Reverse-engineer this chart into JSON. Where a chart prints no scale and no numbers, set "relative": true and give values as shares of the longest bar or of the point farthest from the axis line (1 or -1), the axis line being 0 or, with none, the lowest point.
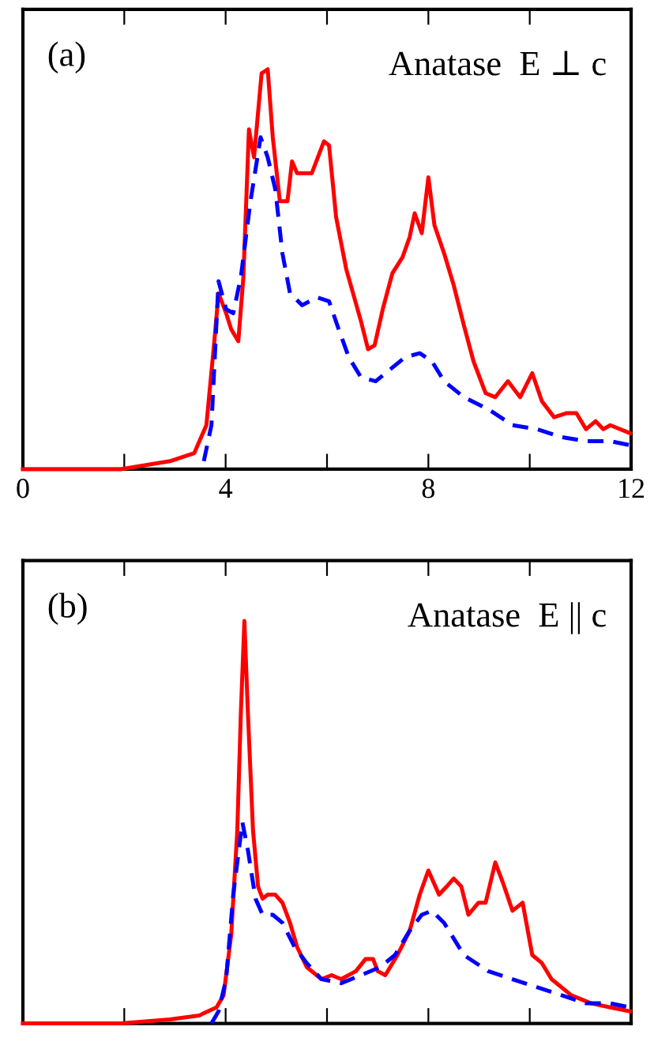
{
  "chart_data": [
    {
      "type": "line",
      "relative": true,
      "xlim": [
        0,
        12
      ],
      "xticks": [
        0,
        {
          "value": 2,
          "label": null
        },
        4,
        {
          "value": 6,
          "label": null
        },
        8,
        {
          "value": 10,
          "label": null
        },
        12
      ],
      "tick_labels": "x",
      "annotations": [
        "(a)",
        "Anatase  E ⊥ c"
      ],
      "series": [
        {
          "color": "#ff0000",
          "line_style": "solid",
          "x": [
            0,
            1.93,
            2.9,
            3.38,
            3.62,
            3.77,
            3.86,
            4.01,
            4.11,
            4.25,
            4.35,
            4.46,
            4.56,
            4.71,
            4.83,
            4.93,
            5.07,
            5.22,
            5.31,
            5.41,
            5.7,
            5.94,
            6.04,
            6.18,
            6.38,
            6.67,
            6.81,
            6.94,
            7.1,
            7.29,
            7.49,
            7.63,
            7.73,
            7.87,
            8.0,
            8.12,
            8.31,
            8.5,
            8.7,
            8.89,
            9.13,
            9.32,
            9.57,
            9.81,
            10.05,
            10.24,
            10.48,
            10.72,
            10.92,
            11.11,
            11.3,
            11.45,
            11.59,
            11.98
          ],
          "values": [
            0,
            0,
            0.02,
            0.04,
            0.11,
            0.31,
            0.44,
            0.39,
            0.35,
            0.32,
            0.48,
            0.85,
            0.78,
            0.99,
            1.0,
            0.83,
            0.67,
            0.67,
            0.77,
            0.74,
            0.74,
            0.82,
            0.81,
            0.63,
            0.5,
            0.37,
            0.3,
            0.31,
            0.4,
            0.49,
            0.53,
            0.58,
            0.64,
            0.59,
            0.73,
            0.61,
            0.54,
            0.46,
            0.36,
            0.27,
            0.19,
            0.18,
            0.22,
            0.18,
            0.24,
            0.17,
            0.13,
            0.14,
            0.14,
            0.1,
            0.12,
            0.1,
            0.11,
            0.09
          ]
        },
        {
          "color": "#0000ff",
          "line_style": "dashed",
          "x": [
            3.57,
            3.72,
            3.86,
            4.01,
            4.15,
            4.3,
            4.49,
            4.69,
            4.83,
            4.98,
            5.12,
            5.27,
            5.51,
            5.8,
            6.04,
            6.23,
            6.43,
            6.67,
            6.96,
            7.25,
            7.54,
            7.83,
            8.07,
            8.31,
            8.7,
            9.18,
            9.66,
            10.14,
            10.63,
            11.11,
            11.59,
            11.98
          ],
          "values": [
            0.02,
            0.11,
            0.47,
            0.4,
            0.39,
            0.48,
            0.67,
            0.83,
            0.78,
            0.7,
            0.54,
            0.44,
            0.41,
            0.43,
            0.42,
            0.35,
            0.28,
            0.23,
            0.22,
            0.25,
            0.28,
            0.29,
            0.27,
            0.22,
            0.18,
            0.15,
            0.11,
            0.1,
            0.08,
            0.07,
            0.07,
            0.06
          ]
        }
      ]
    },
    {
      "type": "line",
      "relative": true,
      "xlim": [
        0,
        12
      ],
      "xticks": [
        0,
        {
          "value": 2,
          "label": null
        },
        4,
        {
          "value": 6,
          "label": null
        },
        8,
        {
          "value": 10,
          "label": null
        },
        12
      ],
      "tick_labels": false,
      "annotations": [
        "(b)",
        "Anatase  E || c"
      ],
      "series": [
        {
          "color": "#ff0000",
          "line_style": "solid",
          "x": [
            0,
            1.93,
            2.9,
            3.48,
            3.82,
            3.96,
            4.11,
            4.23,
            4.3,
            4.37,
            4.44,
            4.54,
            4.64,
            4.73,
            4.83,
            4.98,
            5.12,
            5.27,
            5.41,
            5.6,
            5.89,
            6.09,
            6.28,
            6.57,
            6.76,
            6.91,
            7.0,
            7.15,
            7.39,
            7.63,
            7.83,
            8.0,
            8.21,
            8.36,
            8.5,
            8.65,
            8.79,
            8.99,
            9.13,
            9.32,
            9.47,
            9.66,
            9.86,
            10.05,
            10.24,
            10.43,
            10.82,
            11.21,
            11.59,
            11.98
          ],
          "values": [
            0,
            0,
            0.01,
            0.02,
            0.04,
            0.07,
            0.22,
            0.48,
            0.77,
            1.0,
            0.77,
            0.48,
            0.34,
            0.31,
            0.32,
            0.32,
            0.3,
            0.25,
            0.19,
            0.14,
            0.11,
            0.12,
            0.11,
            0.13,
            0.16,
            0.16,
            0.13,
            0.12,
            0.17,
            0.23,
            0.32,
            0.38,
            0.32,
            0.34,
            0.36,
            0.34,
            0.27,
            0.3,
            0.3,
            0.4,
            0.35,
            0.28,
            0.3,
            0.17,
            0.15,
            0.11,
            0.07,
            0.05,
            0.04,
            0.03
          ]
        },
        {
          "color": "#0000ff",
          "line_style": "dashed",
          "x": [
            3.72,
            3.86,
            4.01,
            4.15,
            4.33,
            4.44,
            4.59,
            4.73,
            4.93,
            5.12,
            5.36,
            5.6,
            5.89,
            6.28,
            6.67,
            7.05,
            7.34,
            7.63,
            7.87,
            8.07,
            8.31,
            8.7,
            9.18,
            9.66,
            10.14,
            10.63,
            11.11,
            11.59,
            11.98
          ],
          "values": [
            0,
            0.03,
            0.11,
            0.32,
            0.5,
            0.43,
            0.31,
            0.27,
            0.27,
            0.25,
            0.19,
            0.15,
            0.11,
            0.1,
            0.12,
            0.14,
            0.17,
            0.23,
            0.27,
            0.28,
            0.25,
            0.17,
            0.13,
            0.11,
            0.09,
            0.07,
            0.05,
            0.05,
            0.04
          ]
        }
      ]
    }
  ]
}
